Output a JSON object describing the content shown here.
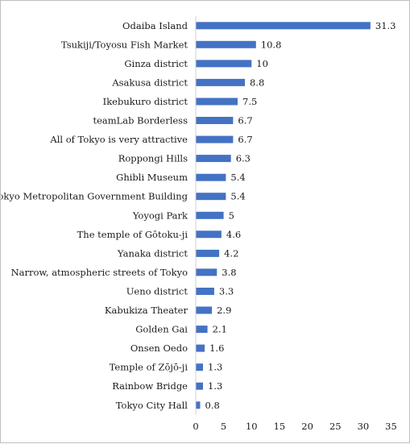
{
  "chart_data": {
    "type": "bar",
    "orientation": "horizontal",
    "title": "",
    "xlabel": "",
    "ylabel": "",
    "bar_color": "#4472c4",
    "grid": false,
    "legend": "none",
    "xlim": [
      0,
      35
    ],
    "x_ticks": [
      "0",
      "5",
      "10",
      "15",
      "20",
      "25",
      "30",
      "35"
    ],
    "categories": [
      "Odaiba Island",
      "Tsukiji/Toyosu Fish Market",
      "Ginza district",
      "Asakusa district",
      "Ikebukuro district",
      "teamLab Borderless",
      "All of Tokyo is very attractive",
      "Roppongi Hills",
      "Ghibli Museum",
      "Tokyo Metropolitan Government Building",
      "Yoyogi Park",
      "The temple of Gōtoku-ji",
      "Yanaka district",
      "Narrow, atmospheric streets of Tokyo",
      "Ueno district",
      "Kabukiza Theater",
      "Golden Gai",
      "Onsen Oedo",
      "Temple of Zōjō-ji",
      "Rainbow Bridge",
      "Tokyo City Hall"
    ],
    "values": [
      31.3,
      10.8,
      10,
      8.8,
      7.5,
      6.7,
      6.7,
      6.3,
      5.4,
      5.4,
      5,
      4.6,
      4.2,
      3.8,
      3.3,
      2.9,
      2.1,
      1.6,
      1.3,
      1.3,
      0.8
    ],
    "value_labels": [
      "31.3",
      "10.8",
      "10",
      "8.8",
      "7.5",
      "6.7",
      "6.7",
      "6.3",
      "5.4",
      "5.4",
      "5",
      "4.6",
      "4.2",
      "3.8",
      "3.3",
      "2.9",
      "2.1",
      "1.6",
      "1.3",
      "1.3",
      "0.8"
    ]
  }
}
